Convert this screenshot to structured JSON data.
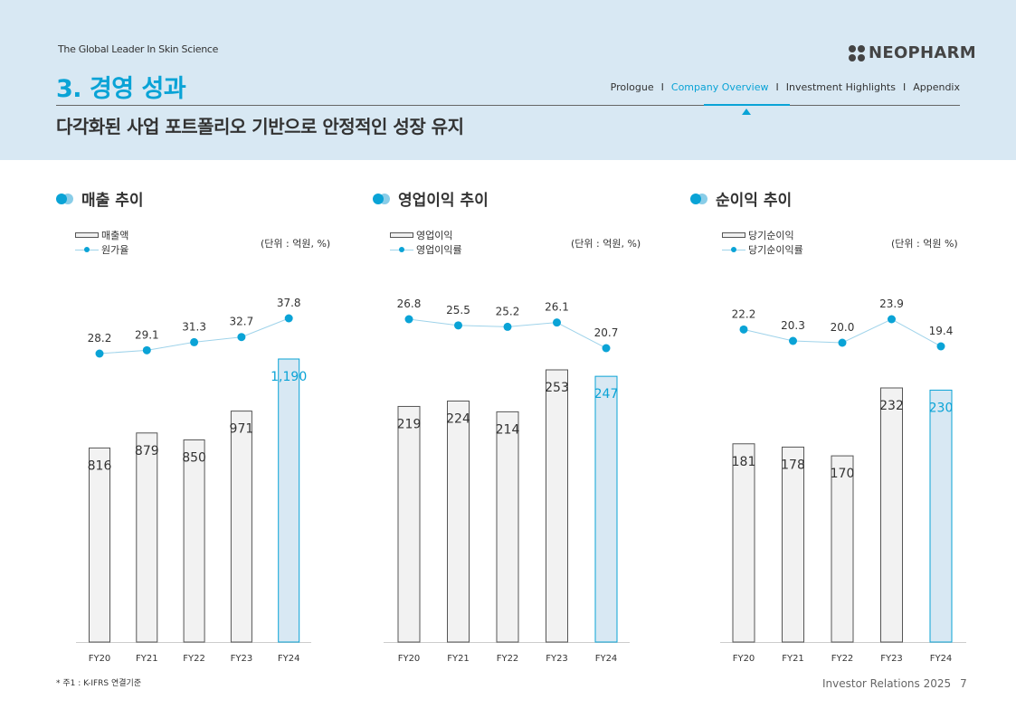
{
  "header": {
    "tagline": "The Global Leader In Skin Science",
    "logo_text": "NEOPHARM",
    "section_title": "3. 경영 성과",
    "subtitle": "다각화된 사업 포트폴리오 기반으로 안정적인 성장 유지",
    "nav": [
      "Prologue",
      "Company Overview",
      "Investment Highlights",
      "Appendix"
    ],
    "nav_active": "Company Overview",
    "nav_separator": "I"
  },
  "panels": [
    {
      "title": "매출 추이",
      "legend_bar": "매출액",
      "legend_line": "원가율",
      "unit": "(단위 : 억원, %)"
    },
    {
      "title": "영업이익 추이",
      "legend_bar": "영업이익",
      "legend_line": "영업이익률",
      "unit": "(단위 : 억원, %)"
    },
    {
      "title": "순이익 추이",
      "legend_bar": "당기순이익",
      "legend_line": "당기순이익률",
      "unit": "(단위 : 억원 %)"
    }
  ],
  "chart_data": [
    {
      "type": "bar",
      "title": "매출 추이",
      "categories": [
        "FY20",
        "FY21",
        "FY22",
        "FY23",
        "FY24"
      ],
      "series": [
        {
          "name": "매출액",
          "values": [
            816,
            879,
            850,
            971,
            1190
          ],
          "labels": [
            "816",
            "879",
            "850",
            "971",
            "1,190"
          ]
        },
        {
          "name": "원가율",
          "type": "line",
          "values": [
            28.2,
            29.1,
            31.3,
            32.7,
            37.8
          ],
          "labels": [
            "28.2",
            "29.1",
            "31.3",
            "32.7",
            "37.8"
          ]
        }
      ],
      "highlight_index": 4
    },
    {
      "type": "bar",
      "title": "영업이익 추이",
      "categories": [
        "FY20",
        "FY21",
        "FY22",
        "FY23",
        "FY24"
      ],
      "series": [
        {
          "name": "영업이익",
          "values": [
            219,
            224,
            214,
            253,
            247
          ],
          "labels": [
            "219",
            "224",
            "214",
            "253",
            "247"
          ]
        },
        {
          "name": "영업이익률",
          "type": "line",
          "values": [
            26.8,
            25.5,
            25.2,
            26.1,
            20.7
          ],
          "labels": [
            "26.8",
            "25.5",
            "25.2",
            "26.1",
            "20.7"
          ]
        }
      ],
      "highlight_index": 4
    },
    {
      "type": "bar",
      "title": "순이익 추이",
      "categories": [
        "FY20",
        "FY21",
        "FY22",
        "FY23",
        "FY24"
      ],
      "series": [
        {
          "name": "당기순이익",
          "values": [
            181,
            178,
            170,
            232,
            230
          ],
          "labels": [
            "181",
            "178",
            "170",
            "232",
            "230"
          ]
        },
        {
          "name": "당기순이익률",
          "type": "line",
          "values": [
            22.2,
            20.3,
            20.0,
            23.9,
            19.4
          ],
          "labels": [
            "22.2",
            "20.3",
            "20.0",
            "23.9",
            "19.4"
          ]
        }
      ],
      "highlight_index": 4
    }
  ],
  "colors": {
    "accent": "#0aa3d6",
    "header_bg": "#d8e8f3",
    "bar_fill": "#f2f2f2",
    "bar_stroke": "#555555",
    "highlight_fill": "#d8e8f3",
    "line": "#9fd3ea"
  },
  "footer": {
    "footnote": "* 주1 : K-IFRS 연결기준",
    "label": "Investor Relations 2025",
    "page": "7"
  }
}
